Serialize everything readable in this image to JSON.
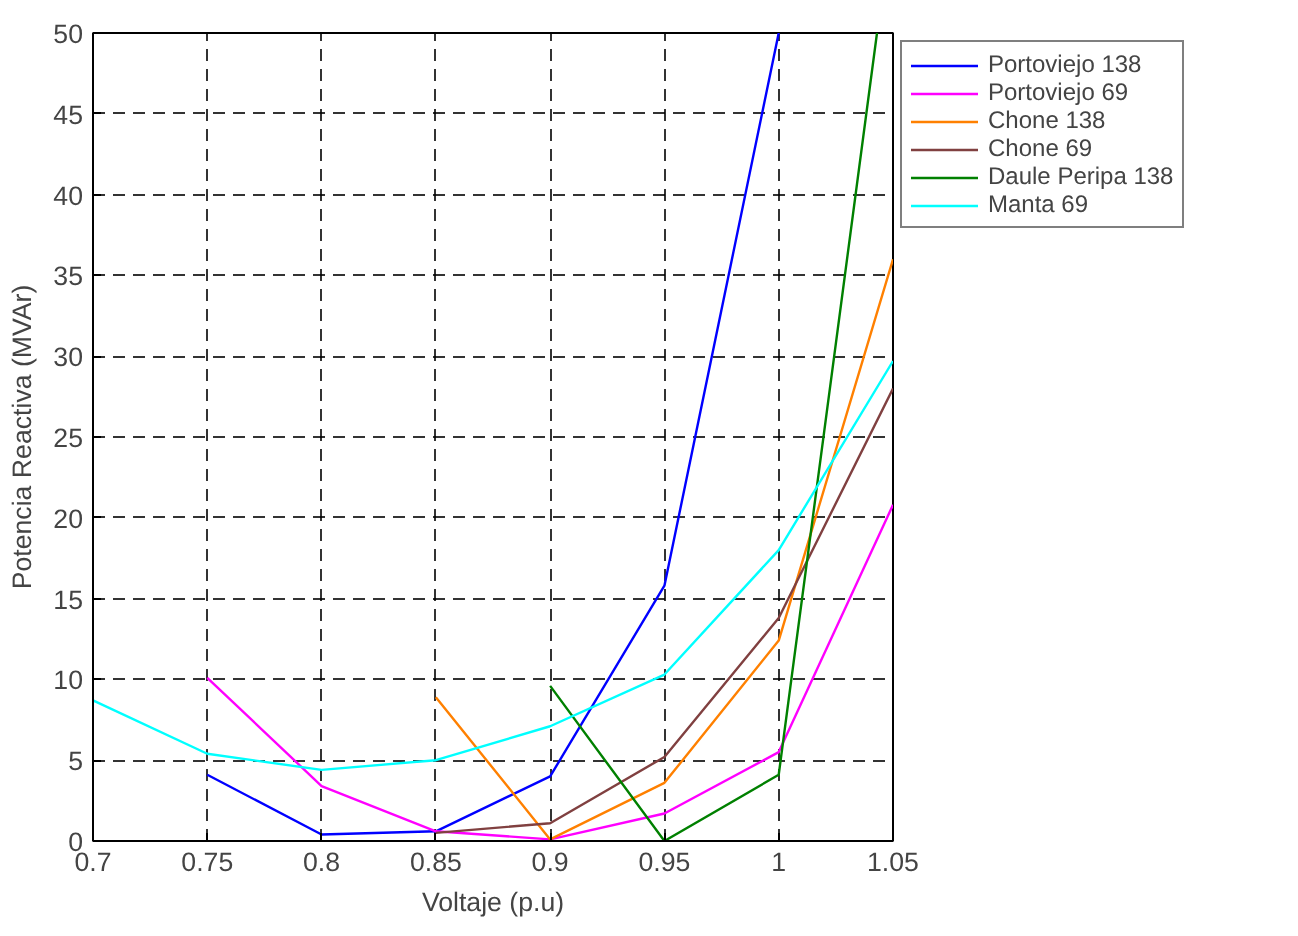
{
  "chart_data": {
    "type": "line",
    "xlabel": "Voltaje (p.u)",
    "ylabel": "Potencia Reactiva (MVAr)",
    "xlim": [
      0.7,
      1.05
    ],
    "ylim": [
      0,
      50
    ],
    "xticks": [
      0.7,
      0.75,
      0.8,
      0.85,
      0.9,
      0.95,
      1,
      1.05
    ],
    "yticks": [
      0,
      5,
      10,
      15,
      20,
      25,
      30,
      35,
      40,
      45,
      50
    ],
    "grid": true,
    "legend": "top right",
    "marker": "none",
    "line_style": "solid",
    "series": [
      {
        "name": "Portoviejo 138",
        "color": "#0000ff",
        "x": [
          0.75,
          0.8,
          0.85,
          0.9,
          0.95,
          1.0
        ],
        "values": [
          4.1,
          0.4,
          0.6,
          4.0,
          15.8,
          50
        ]
      },
      {
        "name": "Portoviejo 69",
        "color": "#ff00ff",
        "x": [
          0.75,
          0.8,
          0.85,
          0.9,
          0.95,
          1.0,
          1.05
        ],
        "values": [
          10.1,
          3.4,
          0.6,
          0.1,
          1.7,
          5.5,
          20.8
        ]
      },
      {
        "name": "Chone 138",
        "color": "#ff8000",
        "x": [
          0.85,
          0.9,
          0.95,
          1.0,
          1.05
        ],
        "values": [
          8.9,
          0.1,
          3.6,
          12.4,
          36
        ]
      },
      {
        "name": "Chone 69",
        "color": "#804040",
        "x": [
          0.85,
          0.9,
          0.95,
          1.0,
          1.05
        ],
        "values": [
          0.5,
          1.1,
          5.2,
          13.8,
          28
        ]
      },
      {
        "name": "Daule Peripa 138",
        "color": "#008000",
        "x": [
          0.9,
          0.95,
          1.0,
          1.043
        ],
        "values": [
          9.6,
          0,
          4.1,
          50
        ]
      },
      {
        "name": "Manta 69",
        "color": "#00ffff",
        "x": [
          0.7,
          0.75,
          0.8,
          0.85,
          0.9,
          0.95,
          1.0,
          1.05
        ],
        "values": [
          8.7,
          5.4,
          4.4,
          5.0,
          7.1,
          10.3,
          18,
          29.7
        ]
      }
    ]
  }
}
